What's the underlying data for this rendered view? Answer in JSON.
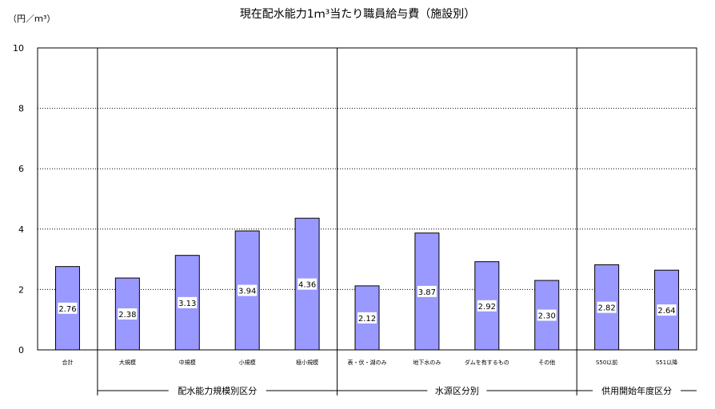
{
  "chart_data": {
    "type": "bar",
    "title": "現在配水能力1ｍ³当たり職員給与費（施設別）",
    "ylabel": "（円／ｍ³）",
    "xlabel": "",
    "ylim": [
      0,
      10
    ],
    "yticks": [
      "0",
      "2",
      "4",
      "6",
      "8",
      "10"
    ],
    "grid": true,
    "categories": [
      "合計",
      "大規模",
      "中規模",
      "小規模",
      "極小規模",
      "表・伏・湖のみ",
      "地下水のみ",
      "ダムを有するもの",
      "その他",
      "S50以前",
      "S51以降"
    ],
    "values": [
      2.76,
      2.38,
      3.13,
      3.94,
      4.36,
      2.12,
      3.87,
      2.92,
      2.3,
      2.82,
      2.64
    ],
    "data_labels": [
      "2.76",
      "2.38",
      "3.13",
      "3.94",
      "4.36",
      "2.12",
      "3.87",
      "2.92",
      "2.30",
      "2.82",
      "2.64"
    ],
    "groups": [
      {
        "label": "配水能力規模別区分",
        "start": 1,
        "end": 4
      },
      {
        "label": "水源区分別",
        "start": 5,
        "end": 8
      },
      {
        "label": "供用開始年度区分",
        "start": 9,
        "end": 10
      }
    ],
    "colors": {
      "bar_fill": "#9999ff",
      "bar_stroke": "#000000",
      "grid": "#000000"
    }
  }
}
